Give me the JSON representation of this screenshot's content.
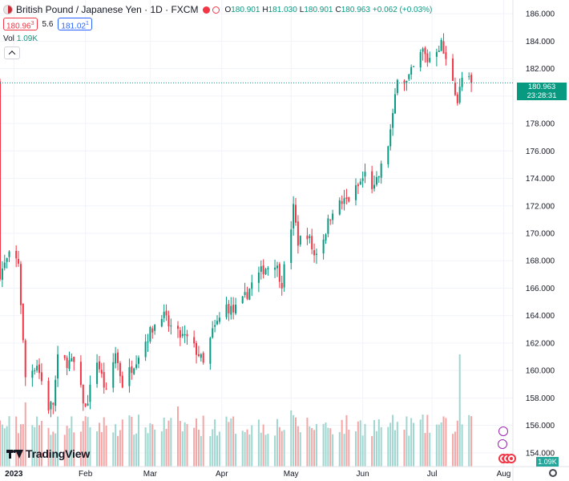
{
  "header": {
    "title": "British Pound / Japanese Yen · 1D · FXCM",
    "open_label": "O",
    "open": "180.901",
    "high_label": "H",
    "high": "181.030",
    "low_label": "L",
    "low": "180.901",
    "close_label": "C",
    "close": "180.963",
    "change": "+0.062 (+0.03%)",
    "sell_price": "180.96",
    "sell_sup": "3",
    "spread": "5.6",
    "buy_price": "181.02",
    "buy_sup": "1",
    "volume_label": "Vol",
    "volume_value": "1.09K"
  },
  "price_tag": {
    "price": "180.963",
    "countdown": "23:28:31"
  },
  "volume_tag": "1.09K",
  "logo_text": "TradingView",
  "colors": {
    "up": "#089981",
    "down": "#f23645",
    "vol_up": "#9fd6cf",
    "vol_down": "#f4a6a6",
    "grid": "#f0f3fa"
  },
  "chart_data": {
    "type": "candlestick",
    "title": "British Pound / Japanese Yen · 1D · FXCM",
    "y_axis": {
      "min": 153,
      "max": 187,
      "ticks": [
        "186.000",
        "184.000",
        "182.000",
        "180.000",
        "178.000",
        "176.000",
        "174.000",
        "172.000",
        "170.000",
        "168.000",
        "166.000",
        "164.000",
        "162.000",
        "160.000",
        "158.000",
        "156.000",
        "154.000"
      ]
    },
    "x_axis": {
      "range": [
        "2022-12-26",
        "2023-08-05"
      ],
      "ticks": [
        {
          "label": "2023",
          "date": "2023-01-01"
        },
        {
          "label": "Feb",
          "date": "2023-02-01"
        },
        {
          "label": "Mar",
          "date": "2023-03-01"
        },
        {
          "label": "Apr",
          "date": "2023-04-01"
        },
        {
          "label": "May",
          "date": "2023-05-01"
        },
        {
          "label": "Jun",
          "date": "2023-06-01"
        },
        {
          "label": "Jul",
          "date": "2023-07-01"
        },
        {
          "label": "Aug",
          "date": "2023-08-01"
        }
      ]
    },
    "last_price": 180.963,
    "close_anchors": [
      {
        "date": "2022-12-26",
        "close": 167.1
      },
      {
        "date": "2022-12-30",
        "close": 168.3
      },
      {
        "date": "2023-01-03",
        "close": 167.9
      },
      {
        "date": "2023-01-05",
        "close": 162.0
      },
      {
        "date": "2023-01-06",
        "close": 159.5
      },
      {
        "date": "2023-01-11",
        "close": 160.5
      },
      {
        "date": "2023-01-16",
        "close": 157.3
      },
      {
        "date": "2023-01-18",
        "close": 157.6
      },
      {
        "date": "2023-01-20",
        "close": 160.8
      },
      {
        "date": "2023-01-27",
        "close": 160.5
      },
      {
        "date": "2023-02-01",
        "close": 157.2
      },
      {
        "date": "2023-02-06",
        "close": 160.8
      },
      {
        "date": "2023-02-10",
        "close": 158.3
      },
      {
        "date": "2023-02-14",
        "close": 161.3
      },
      {
        "date": "2023-02-17",
        "close": 159.0
      },
      {
        "date": "2023-02-24",
        "close": 161.2
      },
      {
        "date": "2023-02-28",
        "close": 162.5
      },
      {
        "date": "2023-03-06",
        "close": 164.2
      },
      {
        "date": "2023-03-09",
        "close": 163.3
      },
      {
        "date": "2023-03-13",
        "close": 162.6
      },
      {
        "date": "2023-03-17",
        "close": 162.3
      },
      {
        "date": "2023-03-22",
        "close": 161.2
      },
      {
        "date": "2023-03-24",
        "close": 160.4
      },
      {
        "date": "2023-03-28",
        "close": 162.8
      },
      {
        "date": "2023-04-03",
        "close": 164.7
      },
      {
        "date": "2023-04-06",
        "close": 164.3
      },
      {
        "date": "2023-04-10",
        "close": 165.0
      },
      {
        "date": "2023-04-14",
        "close": 166.3
      },
      {
        "date": "2023-04-19",
        "close": 167.4
      },
      {
        "date": "2023-04-24",
        "close": 167.9
      },
      {
        "date": "2023-04-27",
        "close": 166.4
      },
      {
        "date": "2023-05-01",
        "close": 170.5
      },
      {
        "date": "2023-05-02",
        "close": 171.8
      },
      {
        "date": "2023-05-04",
        "close": 169.4
      },
      {
        "date": "2023-05-08",
        "close": 170.0
      },
      {
        "date": "2023-05-11",
        "close": 168.4
      },
      {
        "date": "2023-05-15",
        "close": 169.7
      },
      {
        "date": "2023-05-19",
        "close": 171.8
      },
      {
        "date": "2023-05-23",
        "close": 172.2
      },
      {
        "date": "2023-05-26",
        "close": 172.5
      },
      {
        "date": "2023-05-30",
        "close": 173.4
      },
      {
        "date": "2023-06-02",
        "close": 174.3
      },
      {
        "date": "2023-06-06",
        "close": 173.2
      },
      {
        "date": "2023-06-08",
        "close": 174.2
      },
      {
        "date": "2023-06-12",
        "close": 176.5
      },
      {
        "date": "2023-06-14",
        "close": 178.4
      },
      {
        "date": "2023-06-16",
        "close": 181.6
      },
      {
        "date": "2023-06-20",
        "close": 181.0
      },
      {
        "date": "2023-06-23",
        "close": 182.0
      },
      {
        "date": "2023-06-27",
        "close": 183.3
      },
      {
        "date": "2023-06-29",
        "close": 182.6
      },
      {
        "date": "2023-07-03",
        "close": 183.5
      },
      {
        "date": "2023-07-05",
        "close": 183.8
      },
      {
        "date": "2023-07-07",
        "close": 182.5
      },
      {
        "date": "2023-07-10",
        "close": 181.3
      },
      {
        "date": "2023-07-12",
        "close": 179.6
      },
      {
        "date": "2023-07-14",
        "close": 181.3
      },
      {
        "date": "2023-07-17",
        "close": 181.1
      },
      {
        "date": "2023-07-18",
        "close": 180.96
      }
    ],
    "volume_spikes": [
      {
        "date": "2023-01-06",
        "volume": 1.6
      },
      {
        "date": "2023-03-13",
        "volume": 1.5
      },
      {
        "date": "2023-05-01",
        "volume": 1.4
      },
      {
        "date": "2023-07-13",
        "volume": 2.8
      }
    ],
    "volume_unit": "K"
  }
}
